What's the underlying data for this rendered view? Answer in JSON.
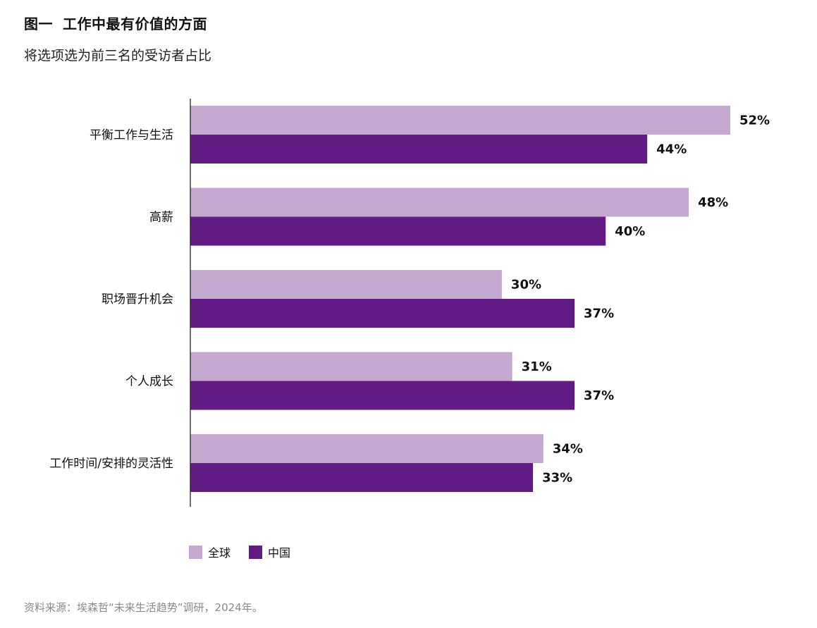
{
  "title_prefix": "图一",
  "title_text": "工作中最有价值的方面",
  "subtitle": "将选项选为前三名的受访者占比",
  "source": "资料来源：埃森哲“未来生活趋势”调研，2024年。",
  "colors": {
    "global": "#c4a9d1",
    "china": "#621a84"
  },
  "chart_data": {
    "type": "bar",
    "orientation": "horizontal",
    "categories": [
      "平衡工作与生活",
      "高薪",
      "职场晋升机会",
      "个人成长",
      "工作时间/安排的灵活性"
    ],
    "series": [
      {
        "name": "全球",
        "values": [
          52,
          48,
          30,
          31,
          34
        ],
        "labels": [
          "52%",
          "48%",
          "30%",
          "31%",
          "34%"
        ]
      },
      {
        "name": "中国",
        "values": [
          44,
          40,
          37,
          37,
          33
        ],
        "labels": [
          "44%",
          "40%",
          "37%",
          "37%",
          "33%"
        ]
      }
    ],
    "xlim": [
      0,
      52
    ],
    "grid": false,
    "legend_position": "bottom-left"
  }
}
